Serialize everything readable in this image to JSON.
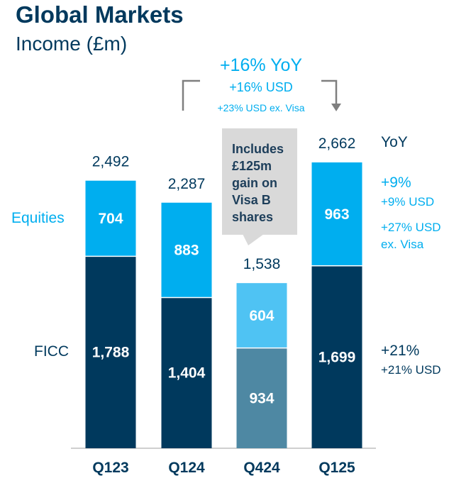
{
  "title": "Global Markets",
  "subtitle": "Income (£m)",
  "chart_data": {
    "type": "bar",
    "stacked": true,
    "categories": [
      "Q123",
      "Q124",
      "Q424",
      "Q125"
    ],
    "series": [
      {
        "name": "FICC",
        "values": [
          1788,
          1404,
          934,
          1699
        ]
      },
      {
        "name": "Equities",
        "values": [
          704,
          883,
          604,
          963
        ]
      }
    ],
    "totals": [
      2492,
      2287,
      1538,
      2662
    ],
    "total_labels": [
      "2,492",
      "2,287",
      "1,538",
      "2,662"
    ],
    "segment_labels": {
      "FICC": [
        "1,788",
        "1,404",
        "934",
        "1,699"
      ],
      "Equities": [
        "704",
        "883",
        "604",
        "963"
      ]
    },
    "ylim": [
      0,
      2700
    ],
    "colors": {
      "FICC": "#00395D",
      "Equities": "#00AEEF",
      "FICC_Q424": "#4E88A3",
      "Equities_Q424": "#4FC3F3",
      "text_navy": "#00395D",
      "text_cyan": "#00AEEF",
      "callout_bg": "#D9D9D9",
      "bracket": "#7F7F7F"
    },
    "top_annotation": {
      "main": "+16% YoY",
      "line2": "+16% USD",
      "line3": "+23% USD ex. Visa"
    },
    "callout": {
      "lines": [
        "Includes",
        "£125m",
        "gain on",
        "Visa B",
        "shares"
      ]
    },
    "yoy": {
      "header": "YoY",
      "equities": {
        "main": "+9%",
        "line2": "+9% USD",
        "line3": "+27% USD",
        "line4": "ex. Visa"
      },
      "ficc": {
        "main": "+21%",
        "line2": "+21% USD"
      }
    }
  }
}
